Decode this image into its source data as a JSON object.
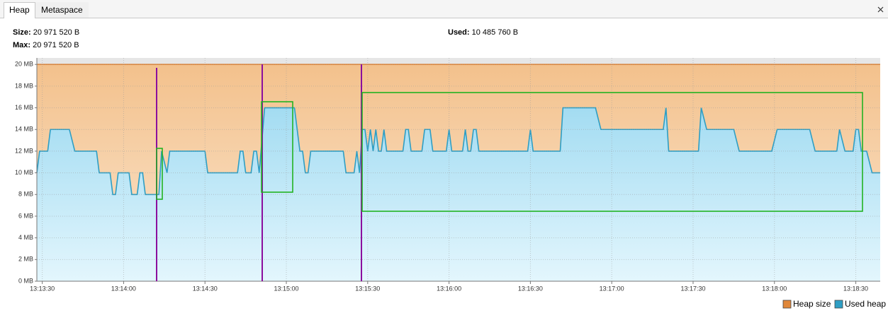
{
  "tabs": [
    "Heap",
    "Metaspace"
  ],
  "stats": {
    "size_label": "Size:",
    "size": "20 971 520 B",
    "max_label": "Max:",
    "max": "20 971 520 B",
    "used_label": "Used:",
    "used": "10 485 760 B"
  },
  "chart_data": {
    "type": "area",
    "xlim": [
      "13:13:28",
      "13:18:39"
    ],
    "xticks": [
      "13:13:30",
      "13:14:00",
      "13:14:30",
      "13:15:00",
      "13:15:30",
      "13:16:00",
      "13:16:30",
      "13:17:00",
      "13:17:30",
      "13:18:00",
      "13:18:30"
    ],
    "ylim": [
      0,
      20.6
    ],
    "yticks": [
      {
        "value": 0,
        "label": "0 MB"
      },
      {
        "value": 2,
        "label": "2 MB"
      },
      {
        "value": 4,
        "label": "4 MB"
      },
      {
        "value": 6,
        "label": "6 MB"
      },
      {
        "value": 8,
        "label": "8 MB"
      },
      {
        "value": 10,
        "label": "10 MB"
      },
      {
        "value": 12,
        "label": "12 MB"
      },
      {
        "value": 14,
        "label": "14 MB"
      },
      {
        "value": 16,
        "label": "16 MB"
      },
      {
        "value": 18,
        "label": "18 MB"
      },
      {
        "value": 20,
        "label": "20 MB"
      }
    ],
    "grid": true,
    "legend": "bottom-right",
    "series": [
      {
        "name": "Heap size",
        "color": "#e0873a",
        "fill_color": "#f5c593",
        "x": [
          "13:13:28",
          "13:18:39"
        ],
        "values": [
          20,
          20
        ]
      },
      {
        "name": "Used heap",
        "color": "#2e9ec4",
        "fill_color": "#a6def3",
        "x": [
          "13:13:28",
          "13:13:29",
          "13:13:32",
          "13:13:33",
          "13:13:40",
          "13:13:42",
          "13:13:50",
          "13:13:51",
          "13:13:55",
          "13:13:56",
          "13:13:57",
          "13:13:58",
          "13:14:02",
          "13:14:03",
          "13:14:05",
          "13:14:06",
          "13:14:07",
          "13:14:08",
          "13:14:13",
          "13:14:14",
          "13:14:16",
          "13:14:17",
          "13:14:30",
          "13:14:31",
          "13:14:42",
          "13:14:43",
          "13:14:44",
          "13:14:45",
          "13:14:47",
          "13:14:48",
          "13:14:49",
          "13:14:50",
          "13:14:52",
          "13:15:03",
          "13:15:05",
          "13:15:06",
          "13:15:07",
          "13:15:08",
          "13:15:09",
          "13:15:21",
          "13:15:22",
          "13:15:25",
          "13:15:26",
          "13:15:27",
          "13:15:28",
          "13:15:29",
          "13:15:30",
          "13:15:31",
          "13:15:32",
          "13:15:33",
          "13:15:34",
          "13:15:35",
          "13:15:36",
          "13:15:37",
          "13:15:43",
          "13:15:44",
          "13:15:45",
          "13:15:46",
          "13:15:50",
          "13:15:51",
          "13:15:53",
          "13:15:54",
          "13:15:59",
          "13:16:00",
          "13:16:01",
          "13:16:05",
          "13:16:06",
          "13:16:07",
          "13:16:08",
          "13:16:09",
          "13:16:10",
          "13:16:11",
          "13:16:29",
          "13:16:30",
          "13:16:31",
          "13:16:41",
          "13:16:42",
          "13:16:54",
          "13:16:56",
          "13:17:19",
          "13:17:20",
          "13:17:21",
          "13:17:32",
          "13:17:33",
          "13:17:35",
          "13:17:45",
          "13:17:47",
          "13:17:59",
          "13:18:01",
          "13:18:13",
          "13:18:15",
          "13:18:23",
          "13:18:24",
          "13:18:26",
          "13:18:29",
          "13:18:30",
          "13:18:31",
          "13:18:32",
          "13:18:34",
          "13:18:36",
          "13:18:39"
        ],
        "values": [
          10,
          12,
          12,
          14,
          14,
          12,
          12,
          10,
          10,
          8,
          8,
          10,
          10,
          8,
          8,
          10,
          10,
          8,
          8,
          12,
          10,
          12,
          12,
          10,
          10,
          12,
          12,
          10,
          10,
          12,
          12,
          10,
          16,
          16,
          12,
          12,
          10,
          10,
          12,
          12,
          10,
          10,
          12,
          10,
          14,
          14,
          12,
          14,
          12,
          14,
          12,
          12,
          14,
          12,
          12,
          14,
          14,
          12,
          12,
          14,
          14,
          12,
          12,
          14,
          12,
          12,
          14,
          12,
          12,
          14,
          14,
          12,
          12,
          14,
          12,
          12,
          16,
          16,
          14,
          14,
          16,
          12,
          12,
          16,
          14,
          14,
          12,
          12,
          14,
          14,
          12,
          12,
          14,
          12,
          12,
          14,
          14,
          12,
          12,
          10,
          10
        ]
      }
    ]
  }
}
